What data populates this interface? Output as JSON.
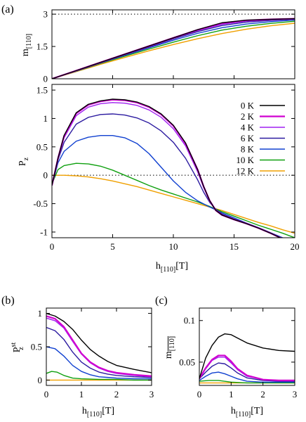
{
  "panel_labels": {
    "a": "(a)",
    "b": "(b)",
    "c": "(c)"
  },
  "xlabel": {
    "main": "h",
    "sub": "[110]",
    "unit": "[T]"
  },
  "colors": {
    "0 K": "#000000",
    "2 K": "#d000d0",
    "4 K": "#a020f0",
    "6 K": "#2c1ba0",
    "8 K": "#1040d0",
    "10 K": "#10a010",
    "12 K": "#f0a000"
  },
  "chart_data": [
    {
      "id": "a-top",
      "type": "line",
      "ylabel": {
        "main": "m",
        "sub": "[110]"
      },
      "xlim": [
        0,
        20
      ],
      "ylim": [
        0,
        3.2
      ],
      "xticks": [
        0,
        5,
        10,
        15,
        20
      ],
      "yticks": [
        0,
        1.5,
        3
      ],
      "ytick_labels": [
        "0",
        "1.5",
        "3"
      ],
      "refline": {
        "y": 3,
        "style": "dotted"
      },
      "grid": false,
      "series": [
        {
          "name": "0 K",
          "x": [
            0,
            2,
            4,
            6,
            8,
            10,
            12,
            14,
            16,
            18,
            20
          ],
          "y": [
            0,
            0.38,
            0.76,
            1.14,
            1.52,
            1.9,
            2.28,
            2.6,
            2.72,
            2.76,
            2.79
          ]
        },
        {
          "name": "2 K",
          "x": [
            0,
            2,
            4,
            6,
            8,
            10,
            12,
            14,
            16,
            18,
            20
          ],
          "y": [
            0,
            0.38,
            0.76,
            1.14,
            1.52,
            1.9,
            2.27,
            2.58,
            2.71,
            2.76,
            2.79
          ]
        },
        {
          "name": "4 K",
          "x": [
            0,
            2,
            4,
            6,
            8,
            10,
            12,
            14,
            16,
            18,
            20
          ],
          "y": [
            0,
            0.37,
            0.75,
            1.13,
            1.5,
            1.88,
            2.24,
            2.53,
            2.68,
            2.74,
            2.78
          ]
        },
        {
          "name": "6 K",
          "x": [
            0,
            2,
            4,
            6,
            8,
            10,
            12,
            14,
            16,
            18,
            20
          ],
          "y": [
            0,
            0.37,
            0.75,
            1.12,
            1.48,
            1.85,
            2.19,
            2.47,
            2.63,
            2.71,
            2.77
          ]
        },
        {
          "name": "8 K",
          "x": [
            0,
            2,
            4,
            6,
            8,
            10,
            12,
            14,
            16,
            18,
            20
          ],
          "y": [
            0,
            0.36,
            0.73,
            1.09,
            1.44,
            1.79,
            2.11,
            2.37,
            2.54,
            2.65,
            2.73
          ]
        },
        {
          "name": "10 K",
          "x": [
            0,
            2,
            4,
            6,
            8,
            10,
            12,
            14,
            16,
            18,
            20
          ],
          "y": [
            0,
            0.35,
            0.71,
            1.05,
            1.38,
            1.7,
            2,
            2.26,
            2.44,
            2.57,
            2.67
          ]
        },
        {
          "name": "12 K",
          "x": [
            0,
            2,
            4,
            6,
            8,
            10,
            12,
            14,
            16,
            18,
            20
          ],
          "y": [
            0,
            0.33,
            0.67,
            0.99,
            1.3,
            1.59,
            1.86,
            2.1,
            2.3,
            2.46,
            2.58
          ]
        }
      ]
    },
    {
      "id": "a-main",
      "type": "line",
      "ylabel": {
        "main": "P",
        "sub": "z"
      },
      "xlim": [
        0,
        20
      ],
      "ylim": [
        -1.1,
        1.6
      ],
      "xticks": [
        0,
        5,
        10,
        15,
        20
      ],
      "yticks": [
        -1,
        -0.5,
        0,
        0.5,
        1,
        1.5
      ],
      "refline": {
        "y": 0,
        "style": "dotted"
      },
      "legend": "top-right",
      "grid": false,
      "series": [
        {
          "name": "0 K",
          "x": [
            0,
            0.5,
            1,
            2,
            3,
            4,
            5,
            6,
            7,
            8,
            9,
            10,
            11,
            12,
            12.5,
            13,
            13.5,
            14,
            15,
            16,
            17,
            18,
            19,
            20
          ],
          "y": [
            -0.18,
            0.3,
            0.7,
            1.1,
            1.25,
            1.31,
            1.34,
            1.33,
            1.29,
            1.21,
            1.08,
            0.88,
            0.57,
            0.1,
            -0.2,
            -0.45,
            -0.62,
            -0.7,
            -0.78,
            -0.85,
            -0.93,
            -1.02,
            -1.12,
            -1.22
          ]
        },
        {
          "name": "2 K",
          "x": [
            0,
            0.5,
            1,
            2,
            3,
            4,
            5,
            6,
            7,
            8,
            9,
            10,
            11,
            12,
            12.5,
            13,
            13.5,
            14,
            15,
            16,
            17,
            18,
            19,
            20
          ],
          "y": [
            -0.18,
            0.3,
            0.69,
            1.09,
            1.24,
            1.3,
            1.33,
            1.32,
            1.28,
            1.2,
            1.07,
            0.87,
            0.56,
            0.1,
            -0.2,
            -0.45,
            -0.62,
            -0.7,
            -0.78,
            -0.85,
            -0.93,
            -1.02,
            -1.12,
            -1.22
          ]
        },
        {
          "name": "4 K",
          "x": [
            0,
            0.5,
            1,
            2,
            3,
            4,
            5,
            6,
            7,
            8,
            9,
            10,
            11,
            12,
            12.5,
            13,
            13.5,
            14,
            15,
            16,
            17,
            18,
            19,
            20
          ],
          "y": [
            -0.18,
            0.29,
            0.66,
            1.05,
            1.2,
            1.26,
            1.28,
            1.27,
            1.23,
            1.15,
            1.02,
            0.82,
            0.52,
            0.06,
            -0.22,
            -0.46,
            -0.62,
            -0.7,
            -0.78,
            -0.85,
            -0.93,
            -1.02,
            -1.12,
            -1.22
          ]
        },
        {
          "name": "6 K",
          "x": [
            0,
            0.5,
            1,
            2,
            3,
            4,
            5,
            6,
            7,
            8,
            9,
            10,
            11,
            12,
            12.5,
            13,
            13.5,
            14,
            15,
            16,
            17,
            18,
            19,
            20
          ],
          "y": [
            -0.18,
            0.27,
            0.58,
            0.9,
            1.02,
            1.07,
            1.08,
            1.06,
            1.01,
            0.92,
            0.78,
            0.58,
            0.3,
            -0.08,
            -0.3,
            -0.48,
            -0.6,
            -0.68,
            -0.77,
            -0.85,
            -0.93,
            -1.02,
            -1.11,
            -1.2
          ]
        },
        {
          "name": "8 K",
          "x": [
            0,
            0.5,
            1,
            2,
            3,
            4,
            5,
            6,
            7,
            8,
            9,
            10,
            11,
            12,
            13,
            14,
            15,
            16,
            17,
            18,
            19,
            20
          ],
          "y": [
            -0.18,
            0.22,
            0.42,
            0.6,
            0.67,
            0.7,
            0.7,
            0.66,
            0.56,
            0.38,
            0.14,
            -0.1,
            -0.3,
            -0.45,
            -0.56,
            -0.66,
            -0.75,
            -0.84,
            -0.92,
            -1.01,
            -1.1,
            -1.19
          ]
        },
        {
          "name": "10 K",
          "x": [
            0,
            0.5,
            1,
            2,
            3,
            4,
            5,
            6,
            7,
            8,
            9,
            10,
            11,
            12,
            13,
            14,
            15,
            16,
            17,
            18,
            19,
            20
          ],
          "y": [
            -0.15,
            0.1,
            0.17,
            0.21,
            0.2,
            0.16,
            0.09,
            0,
            -0.09,
            -0.18,
            -0.26,
            -0.33,
            -0.4,
            -0.47,
            -0.55,
            -0.64,
            -0.72,
            -0.8,
            -0.88,
            -0.95,
            -1.02,
            -1.1
          ]
        },
        {
          "name": "12 K",
          "x": [
            0,
            1,
            2,
            3,
            4,
            5,
            6,
            7,
            8,
            9,
            10,
            11,
            12,
            13,
            14,
            15,
            16,
            17,
            18,
            19,
            20
          ],
          "y": [
            0,
            0,
            -0.01,
            -0.03,
            -0.06,
            -0.1,
            -0.15,
            -0.2,
            -0.26,
            -0.32,
            -0.38,
            -0.44,
            -0.5,
            -0.56,
            -0.62,
            -0.69,
            -0.76,
            -0.83,
            -0.89,
            -0.96,
            -1.02
          ]
        }
      ]
    },
    {
      "id": "b",
      "type": "line",
      "ylabel": {
        "main": "P",
        "sub": "z",
        "sup": "st"
      },
      "xlim": [
        0,
        3
      ],
      "ylim": [
        -0.08,
        1.08
      ],
      "xticks": [
        0,
        1,
        2,
        3
      ],
      "yticks": [
        0,
        0.5,
        1
      ],
      "grid": false,
      "series": [
        {
          "name": "0 K",
          "x": [
            0,
            0.25,
            0.5,
            0.75,
            1,
            1.25,
            1.5,
            1.75,
            2,
            2.5,
            3
          ],
          "y": [
            1,
            0.96,
            0.88,
            0.76,
            0.6,
            0.46,
            0.36,
            0.28,
            0.22,
            0.16,
            0.11
          ]
        },
        {
          "name": "2 K",
          "x": [
            0,
            0.25,
            0.5,
            0.75,
            1,
            1.25,
            1.5,
            1.75,
            2,
            2.5,
            3
          ],
          "y": [
            0.96,
            0.92,
            0.8,
            0.6,
            0.4,
            0.27,
            0.19,
            0.14,
            0.11,
            0.08,
            0.06
          ]
        },
        {
          "name": "4 K",
          "x": [
            0,
            0.25,
            0.5,
            0.75,
            1,
            1.25,
            1.5,
            1.75,
            2,
            2.5,
            3
          ],
          "y": [
            0.93,
            0.89,
            0.78,
            0.58,
            0.39,
            0.26,
            0.18,
            0.13,
            0.1,
            0.07,
            0.05
          ]
        },
        {
          "name": "6 K",
          "x": [
            0,
            0.25,
            0.5,
            0.75,
            1,
            1.25,
            1.5,
            1.75,
            2,
            2.5,
            3
          ],
          "y": [
            0.79,
            0.74,
            0.61,
            0.42,
            0.27,
            0.18,
            0.12,
            0.09,
            0.07,
            0.05,
            0.04
          ]
        },
        {
          "name": "8 K",
          "x": [
            0,
            0.25,
            0.5,
            0.75,
            1,
            1.25,
            1.5,
            1.75,
            2,
            2.5,
            3
          ],
          "y": [
            0.5,
            0.47,
            0.36,
            0.22,
            0.13,
            0.08,
            0.05,
            0.04,
            0.03,
            0.02,
            0.02
          ]
        },
        {
          "name": "10 K",
          "x": [
            0,
            0.15,
            0.3,
            0.5,
            0.75,
            1,
            1.5,
            2,
            2.5,
            3
          ],
          "y": [
            0.1,
            0.13,
            0.12,
            0.07,
            0.03,
            0.02,
            0.01,
            0.01,
            0,
            0
          ]
        },
        {
          "name": "12 K",
          "x": [
            0,
            1,
            2,
            3
          ],
          "y": [
            0,
            0,
            0,
            0
          ]
        }
      ]
    },
    {
      "id": "c",
      "type": "line",
      "ylabel": {
        "main": "m",
        "sub": "[110]",
        "bar": true
      },
      "xlim": [
        0,
        3
      ],
      "ylim": [
        0.022,
        0.115
      ],
      "xticks": [
        0,
        1,
        2,
        3
      ],
      "yticks": [
        0.05,
        0.1
      ],
      "grid": false,
      "series": [
        {
          "name": "0 K",
          "x": [
            0,
            0.2,
            0.4,
            0.6,
            0.8,
            1,
            1.2,
            1.5,
            2,
            2.5,
            3
          ],
          "y": [
            0.03,
            0.055,
            0.07,
            0.08,
            0.084,
            0.083,
            0.079,
            0.073,
            0.067,
            0.064,
            0.063
          ]
        },
        {
          "name": "2 K",
          "x": [
            0,
            0.2,
            0.4,
            0.6,
            0.8,
            1,
            1.2,
            1.5,
            2,
            2.5,
            3
          ],
          "y": [
            0.03,
            0.043,
            0.053,
            0.058,
            0.058,
            0.051,
            0.042,
            0.034,
            0.029,
            0.028,
            0.028
          ]
        },
        {
          "name": "4 K",
          "x": [
            0,
            0.2,
            0.4,
            0.6,
            0.8,
            1,
            1.2,
            1.5,
            2,
            2.5,
            3
          ],
          "y": [
            0.03,
            0.042,
            0.052,
            0.056,
            0.056,
            0.049,
            0.041,
            0.033,
            0.029,
            0.028,
            0.028
          ]
        },
        {
          "name": "6 K",
          "x": [
            0,
            0.2,
            0.4,
            0.6,
            0.8,
            1,
            1.2,
            1.5,
            2,
            2.5,
            3
          ],
          "y": [
            0.03,
            0.038,
            0.045,
            0.049,
            0.048,
            0.043,
            0.037,
            0.031,
            0.028,
            0.027,
            0.027
          ]
        },
        {
          "name": "8 K",
          "x": [
            0,
            0.2,
            0.4,
            0.6,
            0.8,
            1,
            1.2,
            1.5,
            2,
            2.5,
            3
          ],
          "y": [
            0.028,
            0.033,
            0.037,
            0.038,
            0.036,
            0.033,
            0.03,
            0.027,
            0.026,
            0.026,
            0.026
          ]
        },
        {
          "name": "10 K",
          "x": [
            0,
            0.3,
            0.6,
            1,
            1.5,
            2,
            3
          ],
          "y": [
            0.027,
            0.028,
            0.028,
            0.026,
            0.025,
            0.025,
            0.025
          ]
        },
        {
          "name": "12 K",
          "x": [
            0,
            1,
            2,
            3
          ],
          "y": [
            0.025,
            0.025,
            0.025,
            0.025
          ]
        }
      ]
    }
  ]
}
